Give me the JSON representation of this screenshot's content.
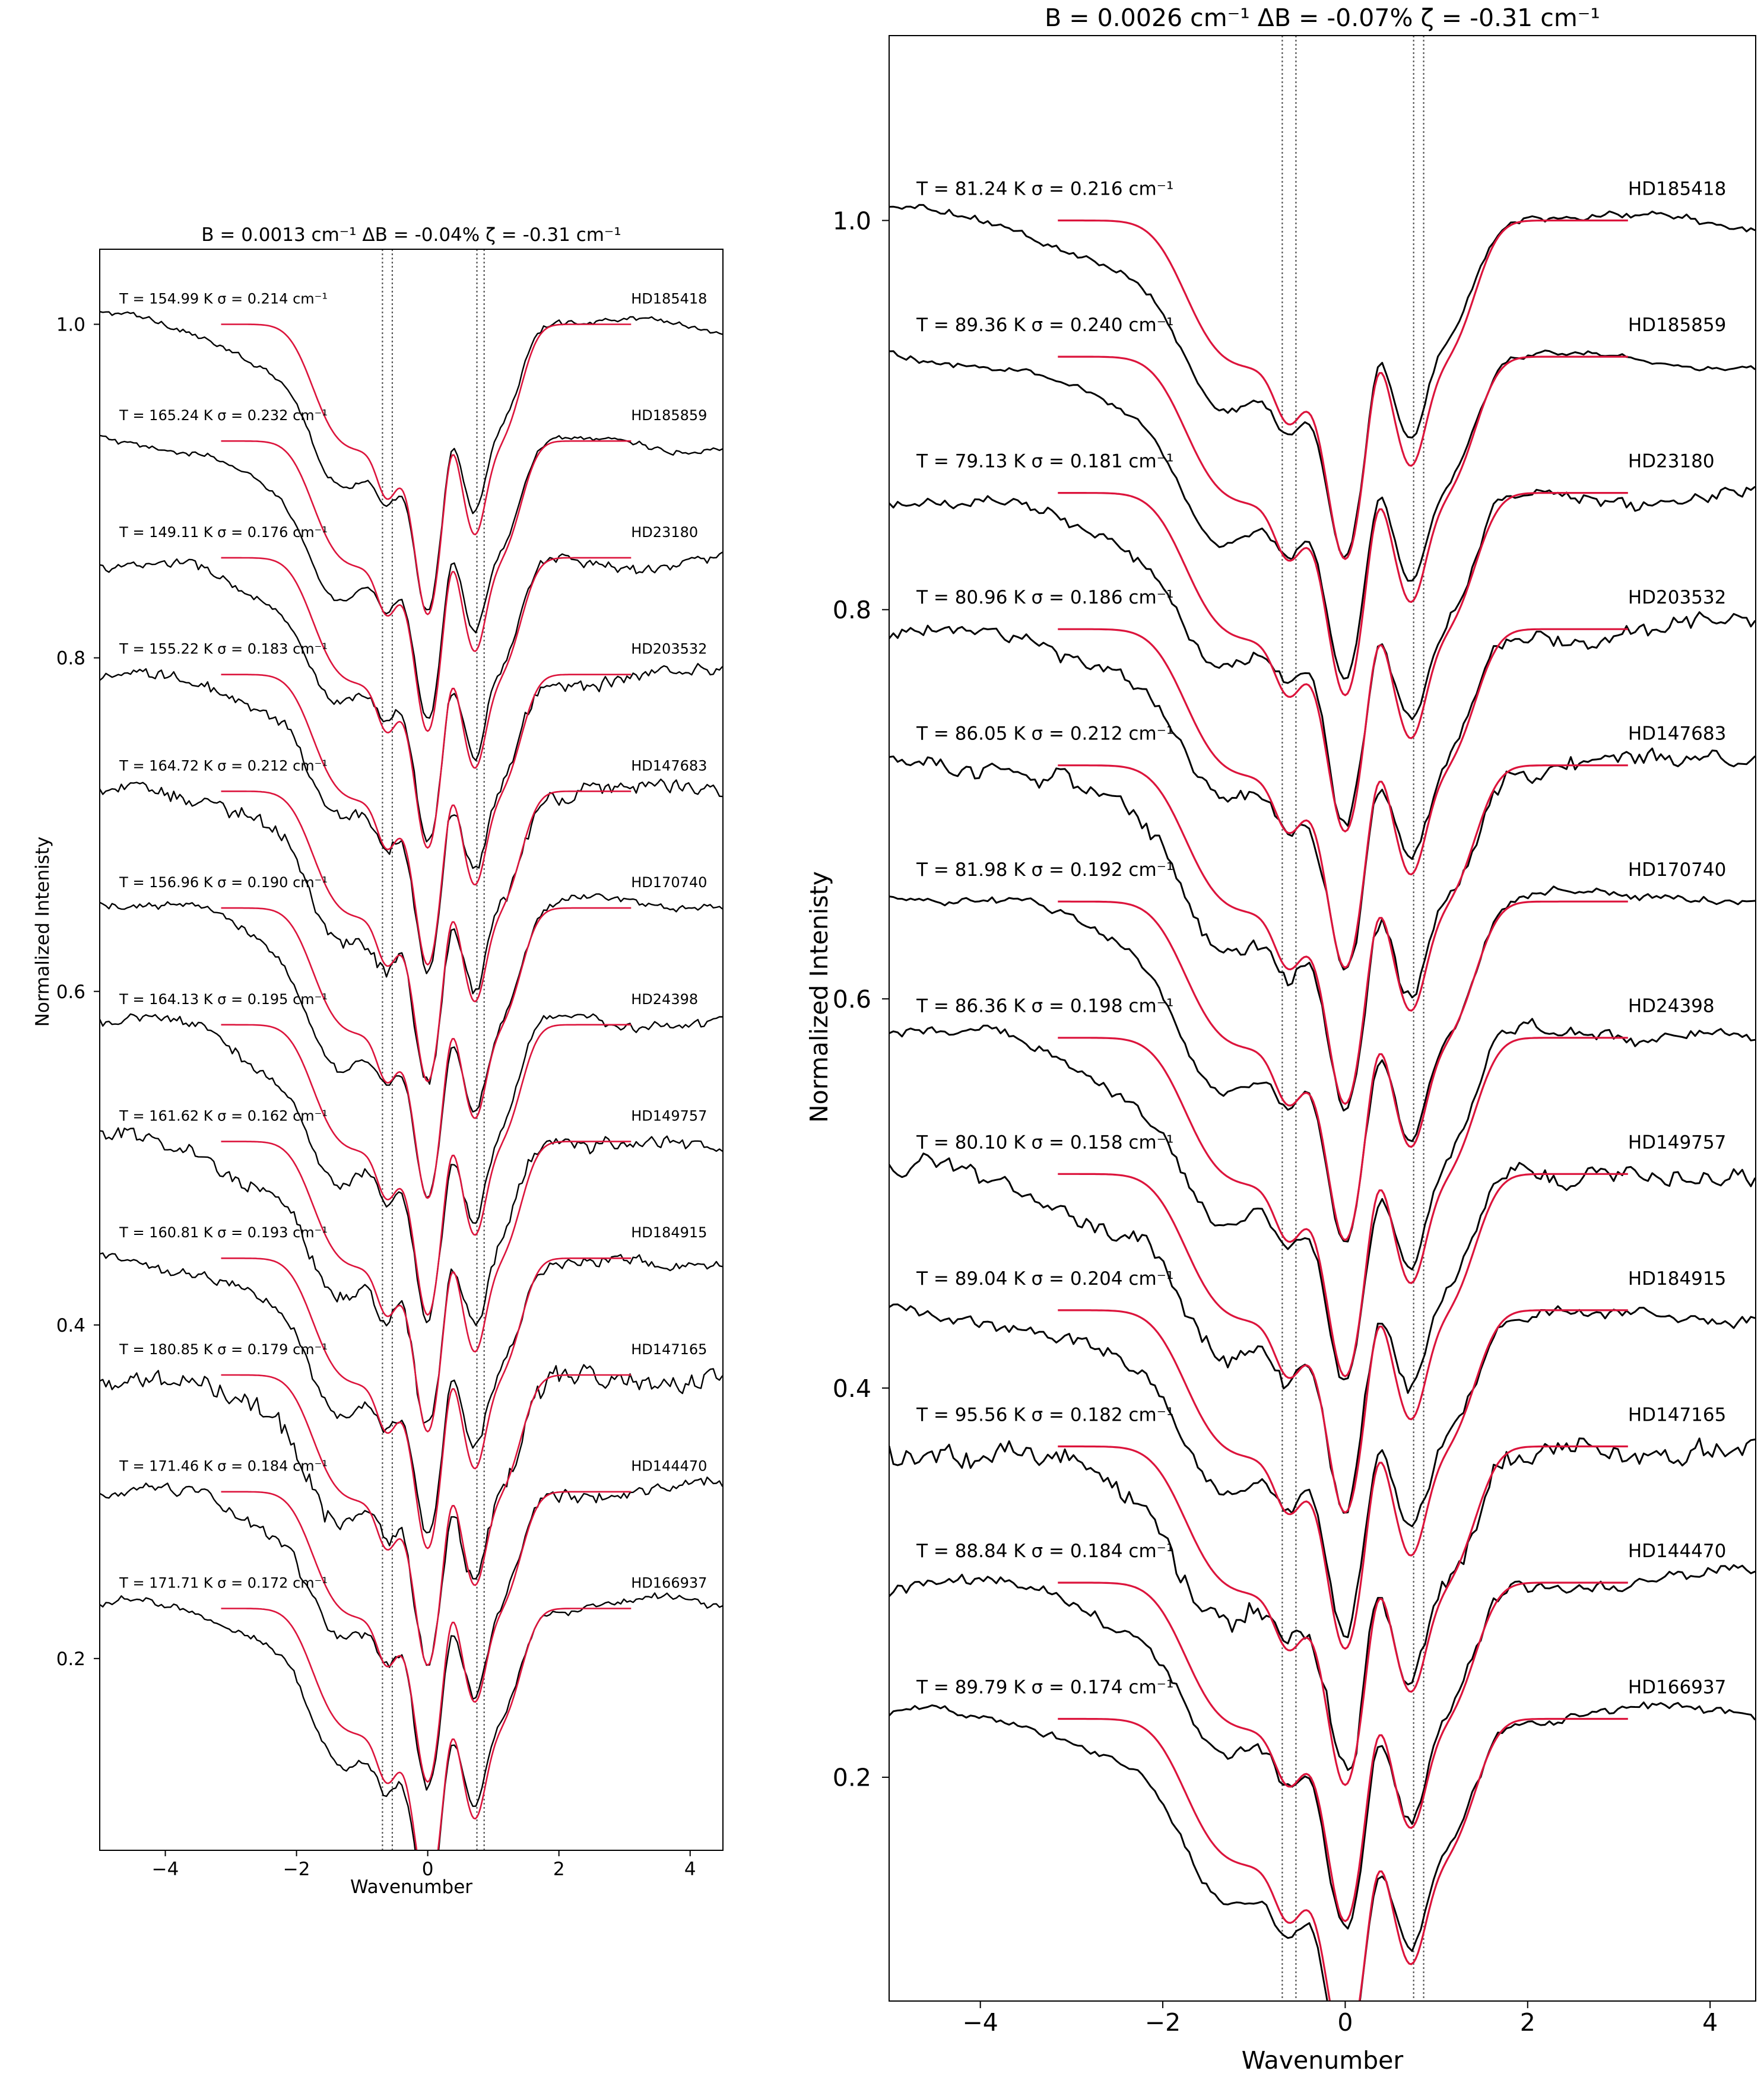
{
  "colors": {
    "data": "#000000",
    "model": "#dc143c",
    "frame": "#000000",
    "guide": "#555555"
  },
  "chart_data": [
    {
      "type": "line",
      "title": "B = 0.0013 cm⁻¹  ΔB = -0.04%  ζ = -0.31 cm⁻¹",
      "xlabel": "Wavenumber",
      "ylabel": "Normalized Intenisty",
      "xlim": [
        -5.0,
        4.5
      ],
      "ylim": [
        0.085,
        1.045
      ],
      "xticks": [
        -4,
        -2,
        0,
        2,
        4
      ],
      "xtick_labels": [
        "−4",
        "−2",
        "0",
        "2",
        "4"
      ],
      "yticks": [
        0.2,
        0.4,
        0.6,
        0.8,
        1.0
      ],
      "ytick_labels": [
        "0.2",
        "0.4",
        "0.6",
        "0.8",
        "1.0"
      ],
      "vlines": [
        -0.69,
        -0.54,
        0.75,
        0.86
      ],
      "grid": false,
      "series": [
        {
          "name": "HD185418",
          "label": "T = 154.99 K σ = 0.214  cm⁻¹",
          "offset": 1.0,
          "temperature": 154.99,
          "sigma": 0.214,
          "noise": 0.002
        },
        {
          "name": "HD185859",
          "label": "T = 165.24 K σ = 0.232  cm⁻¹",
          "offset": 0.93,
          "temperature": 165.24,
          "sigma": 0.232,
          "noise": 0.002
        },
        {
          "name": "HD23180",
          "label": "T = 149.11 K σ = 0.176  cm⁻¹",
          "offset": 0.86,
          "temperature": 149.11,
          "sigma": 0.176,
          "noise": 0.0035
        },
        {
          "name": "HD203532",
          "label": "T = 155.22 K σ = 0.183  cm⁻¹",
          "offset": 0.79,
          "temperature": 155.22,
          "sigma": 0.183,
          "noise": 0.0045
        },
        {
          "name": "HD147683",
          "label": "T = 164.72 K σ = 0.212  cm⁻¹",
          "offset": 0.72,
          "temperature": 164.72,
          "sigma": 0.212,
          "noise": 0.0055
        },
        {
          "name": "HD170740",
          "label": "T = 156.96 K σ = 0.190  cm⁻¹",
          "offset": 0.65,
          "temperature": 156.96,
          "sigma": 0.19,
          "noise": 0.0025
        },
        {
          "name": "HD24398",
          "label": "T = 164.13 K σ = 0.195  cm⁻¹",
          "offset": 0.58,
          "temperature": 164.13,
          "sigma": 0.195,
          "noise": 0.0035
        },
        {
          "name": "HD149757",
          "label": "T = 161.62 K σ = 0.162  cm⁻¹",
          "offset": 0.51,
          "temperature": 161.62,
          "sigma": 0.162,
          "noise": 0.0055
        },
        {
          "name": "HD184915",
          "label": "T = 160.81 K σ = 0.193  cm⁻¹",
          "offset": 0.44,
          "temperature": 160.81,
          "sigma": 0.193,
          "noise": 0.0035
        },
        {
          "name": "HD147165",
          "label": "T = 180.85 K σ = 0.179  cm⁻¹",
          "offset": 0.37,
          "temperature": 180.85,
          "sigma": 0.179,
          "noise": 0.0075
        },
        {
          "name": "HD144470",
          "label": "T = 171.46 K σ = 0.184  cm⁻¹",
          "offset": 0.3,
          "temperature": 171.46,
          "sigma": 0.184,
          "noise": 0.004
        },
        {
          "name": "HD166937",
          "label": "T = 171.71 K σ = 0.172  cm⁻¹",
          "offset": 0.23,
          "temperature": 171.71,
          "sigma": 0.172,
          "noise": 0.0025
        }
      ]
    },
    {
      "type": "line",
      "title": "B = 0.0026 cm⁻¹  ΔB = -0.07%  ζ = -0.31 cm⁻¹",
      "xlabel": "Wavenumber",
      "ylabel": "Normalized Intenisty",
      "xlim": [
        -5.0,
        4.5
      ],
      "ylim": [
        0.085,
        1.095
      ],
      "xticks": [
        -4,
        -2,
        0,
        2,
        4
      ],
      "xtick_labels": [
        "−4",
        "−2",
        "0",
        "2",
        "4"
      ],
      "yticks": [
        0.2,
        0.4,
        0.6,
        0.8,
        1.0
      ],
      "ytick_labels": [
        "0.2",
        "0.4",
        "0.6",
        "0.8",
        "1.0"
      ],
      "vlines": [
        -0.69,
        -0.54,
        0.75,
        0.86
      ],
      "grid": false,
      "series": [
        {
          "name": "HD185418",
          "label": "T = 81.24 K σ = 0.216  cm⁻¹",
          "offset": 1.0,
          "temperature": 81.24,
          "sigma": 0.216,
          "noise": 0.002
        },
        {
          "name": "HD185859",
          "label": "T = 89.36 K σ = 0.240  cm⁻¹",
          "offset": 0.93,
          "temperature": 89.36,
          "sigma": 0.24,
          "noise": 0.002
        },
        {
          "name": "HD23180",
          "label": "T = 79.13 K σ = 0.181  cm⁻¹",
          "offset": 0.86,
          "temperature": 79.13,
          "sigma": 0.181,
          "noise": 0.0035
        },
        {
          "name": "HD203532",
          "label": "T = 80.96 K σ = 0.186  cm⁻¹",
          "offset": 0.79,
          "temperature": 80.96,
          "sigma": 0.186,
          "noise": 0.0045
        },
        {
          "name": "HD147683",
          "label": "T = 86.05 K σ = 0.212  cm⁻¹",
          "offset": 0.72,
          "temperature": 86.05,
          "sigma": 0.212,
          "noise": 0.0055
        },
        {
          "name": "HD170740",
          "label": "T = 81.98 K σ = 0.192  cm⁻¹",
          "offset": 0.65,
          "temperature": 81.98,
          "sigma": 0.192,
          "noise": 0.0025
        },
        {
          "name": "HD24398",
          "label": "T = 86.36 K σ = 0.198  cm⁻¹",
          "offset": 0.58,
          "temperature": 86.36,
          "sigma": 0.198,
          "noise": 0.0035
        },
        {
          "name": "HD149757",
          "label": "T = 80.10 K σ = 0.158  cm⁻¹",
          "offset": 0.51,
          "temperature": 80.1,
          "sigma": 0.158,
          "noise": 0.0055
        },
        {
          "name": "HD184915",
          "label": "T = 89.04 K σ = 0.204  cm⁻¹",
          "offset": 0.44,
          "temperature": 89.04,
          "sigma": 0.204,
          "noise": 0.0035
        },
        {
          "name": "HD147165",
          "label": "T = 95.56 K σ = 0.182  cm⁻¹",
          "offset": 0.37,
          "temperature": 95.56,
          "sigma": 0.182,
          "noise": 0.0075
        },
        {
          "name": "HD144470",
          "label": "T = 88.84 K σ = 0.184  cm⁻¹",
          "offset": 0.3,
          "temperature": 88.84,
          "sigma": 0.184,
          "noise": 0.004
        },
        {
          "name": "HD166937",
          "label": "T = 89.79 K σ = 0.174  cm⁻¹",
          "offset": 0.23,
          "temperature": 89.79,
          "sigma": 0.174,
          "noise": 0.0025
        }
      ]
    }
  ]
}
